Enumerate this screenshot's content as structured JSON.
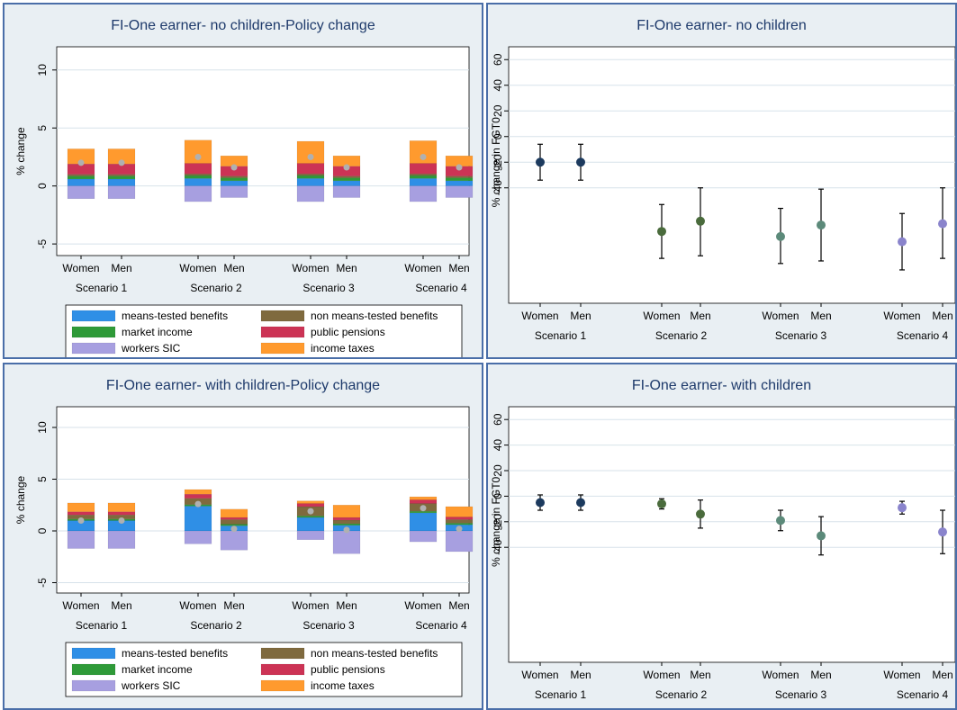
{
  "colors": {
    "means_tested_benefits": "#2f8fe6",
    "non_means_tested_benefits": "#7f6a3e",
    "market_income": "#2e9a38",
    "public_pensions": "#cc3355",
    "workers_sic": "#a79fe0",
    "income_taxes": "#ff9a2e",
    "net_marker": "#b0b0b0",
    "title_text": "#1e3a6b",
    "frame": "#4a6ea8",
    "background": "#e9eff3"
  },
  "chart_data": [
    {
      "type": "bar",
      "stacked": true,
      "title": "FI-One earner- no children-Policy change",
      "ylabel": "% change",
      "ylim": [
        -6,
        12
      ],
      "yticks": [
        -5,
        0,
        5,
        10
      ],
      "grid": true,
      "categories": [
        "Women",
        "Men",
        "Women",
        "Men",
        "Women",
        "Men",
        "Women",
        "Men"
      ],
      "groups": [
        "Scenario 1",
        "Scenario 2",
        "Scenario 3",
        "Scenario 4"
      ],
      "legend_position": "bottom",
      "legend": [
        "means-tested benefits",
        "non means-tested benefits",
        "market income",
        "public pensions",
        "workers SIC",
        "income taxes"
      ],
      "series": [
        {
          "name": "means-tested benefits",
          "values": [
            0.6,
            0.6,
            0.65,
            0.45,
            0.65,
            0.45,
            0.65,
            0.45
          ]
        },
        {
          "name": "market income",
          "values": [
            0.25,
            0.25,
            0.25,
            0.25,
            0.25,
            0.25,
            0.25,
            0.25
          ]
        },
        {
          "name": "non means-tested benefits",
          "values": [
            0.15,
            0.15,
            0.15,
            0.15,
            0.15,
            0.15,
            0.15,
            0.15
          ]
        },
        {
          "name": "public pensions",
          "values": [
            0.9,
            0.9,
            0.9,
            0.85,
            0.9,
            0.85,
            0.9,
            0.85
          ]
        },
        {
          "name": "income taxes",
          "values": [
            1.3,
            1.3,
            2.0,
            0.9,
            1.9,
            0.9,
            1.95,
            0.9
          ]
        },
        {
          "name": "workers SIC",
          "values": [
            -1.1,
            -1.1,
            -1.35,
            -1.0,
            -1.35,
            -1.0,
            -1.35,
            -1.0
          ]
        }
      ],
      "net": [
        2.0,
        2.0,
        2.5,
        1.6,
        2.5,
        1.6,
        2.5,
        1.6
      ]
    },
    {
      "type": "scatter",
      "error_bars": true,
      "title": "FI-One earner- no children",
      "ylabel": "% change in FGT0",
      "ylim": [
        -130,
        70
      ],
      "yticks": [
        60,
        40,
        20,
        0,
        -20,
        -40
      ],
      "grid": true,
      "categories": [
        "Women",
        "Men",
        "Women",
        "Men",
        "Women",
        "Men",
        "Women",
        "Men"
      ],
      "groups": [
        "Scenario 1",
        "Scenario 2",
        "Scenario 3",
        "Scenario 4"
      ],
      "values": [
        -20,
        -20,
        -74,
        -66,
        -78,
        -69,
        -82,
        -68
      ],
      "lower": [
        -34,
        -34,
        -95,
        -93,
        -99,
        -97,
        -104,
        -95
      ],
      "upper": [
        -6,
        -6,
        -53,
        -40,
        -56,
        -41,
        -60,
        -40
      ],
      "marker_colors": [
        "#1c3a5e",
        "#1c3a5e",
        "#4a6b3c",
        "#4a6b3c",
        "#5c8a7a",
        "#5c8a7a",
        "#8a84cc",
        "#8a84cc"
      ]
    },
    {
      "type": "bar",
      "stacked": true,
      "title": "FI-One earner- with children-Policy change",
      "ylabel": "% change",
      "ylim": [
        -6,
        12
      ],
      "yticks": [
        -5,
        0,
        5,
        10
      ],
      "grid": true,
      "categories": [
        "Women",
        "Men",
        "Women",
        "Men",
        "Women",
        "Men",
        "Women",
        "Men"
      ],
      "groups": [
        "Scenario 1",
        "Scenario 2",
        "Scenario 3",
        "Scenario 4"
      ],
      "legend_position": "bottom",
      "legend": [
        "means-tested benefits",
        "non means-tested benefits",
        "market income",
        "public pensions",
        "workers SIC",
        "income taxes"
      ],
      "series": [
        {
          "name": "means-tested benefits",
          "values": [
            1.0,
            1.0,
            2.4,
            0.5,
            1.3,
            0.55,
            1.75,
            0.6
          ]
        },
        {
          "name": "market income",
          "values": [
            0.15,
            0.15,
            0.15,
            0.15,
            0.15,
            0.15,
            0.15,
            0.15
          ]
        },
        {
          "name": "non means-tested benefits",
          "values": [
            0.4,
            0.4,
            0.6,
            0.45,
            0.9,
            0.35,
            0.75,
            0.35
          ]
        },
        {
          "name": "public pensions",
          "values": [
            0.3,
            0.3,
            0.4,
            0.2,
            0.3,
            0.25,
            0.35,
            0.25
          ]
        },
        {
          "name": "income taxes",
          "values": [
            0.85,
            0.85,
            0.45,
            0.8,
            0.25,
            1.2,
            0.3,
            1.0
          ]
        },
        {
          "name": "workers SIC",
          "values": [
            -1.7,
            -1.7,
            -1.25,
            -1.85,
            -0.85,
            -2.2,
            -1.05,
            -2.0
          ]
        }
      ],
      "net": [
        1.0,
        1.0,
        2.6,
        0.2,
        1.9,
        0.1,
        2.2,
        0.2
      ]
    },
    {
      "type": "scatter",
      "error_bars": true,
      "title": "FI-One earner- with children",
      "ylabel": "% change in FGT0",
      "ylim": [
        -130,
        70
      ],
      "yticks": [
        60,
        40,
        20,
        0,
        -20,
        -40
      ],
      "grid": true,
      "categories": [
        "Women",
        "Men",
        "Women",
        "Men",
        "Women",
        "Men",
        "Women",
        "Men"
      ],
      "groups": [
        "Scenario 1",
        "Scenario 2",
        "Scenario 3",
        "Scenario 4"
      ],
      "values": [
        -5,
        -5,
        -6,
        -14,
        -19,
        -31,
        -9,
        -28
      ],
      "lower": [
        -11,
        -11,
        -10,
        -25,
        -27,
        -46,
        -14,
        -45
      ],
      "upper": [
        1,
        1,
        -2,
        -3,
        -11,
        -16,
        -4,
        -11
      ],
      "marker_colors": [
        "#1c3a5e",
        "#1c3a5e",
        "#4a6b3c",
        "#4a6b3c",
        "#5c8a7a",
        "#5c8a7a",
        "#8a84cc",
        "#8a84cc"
      ]
    }
  ]
}
